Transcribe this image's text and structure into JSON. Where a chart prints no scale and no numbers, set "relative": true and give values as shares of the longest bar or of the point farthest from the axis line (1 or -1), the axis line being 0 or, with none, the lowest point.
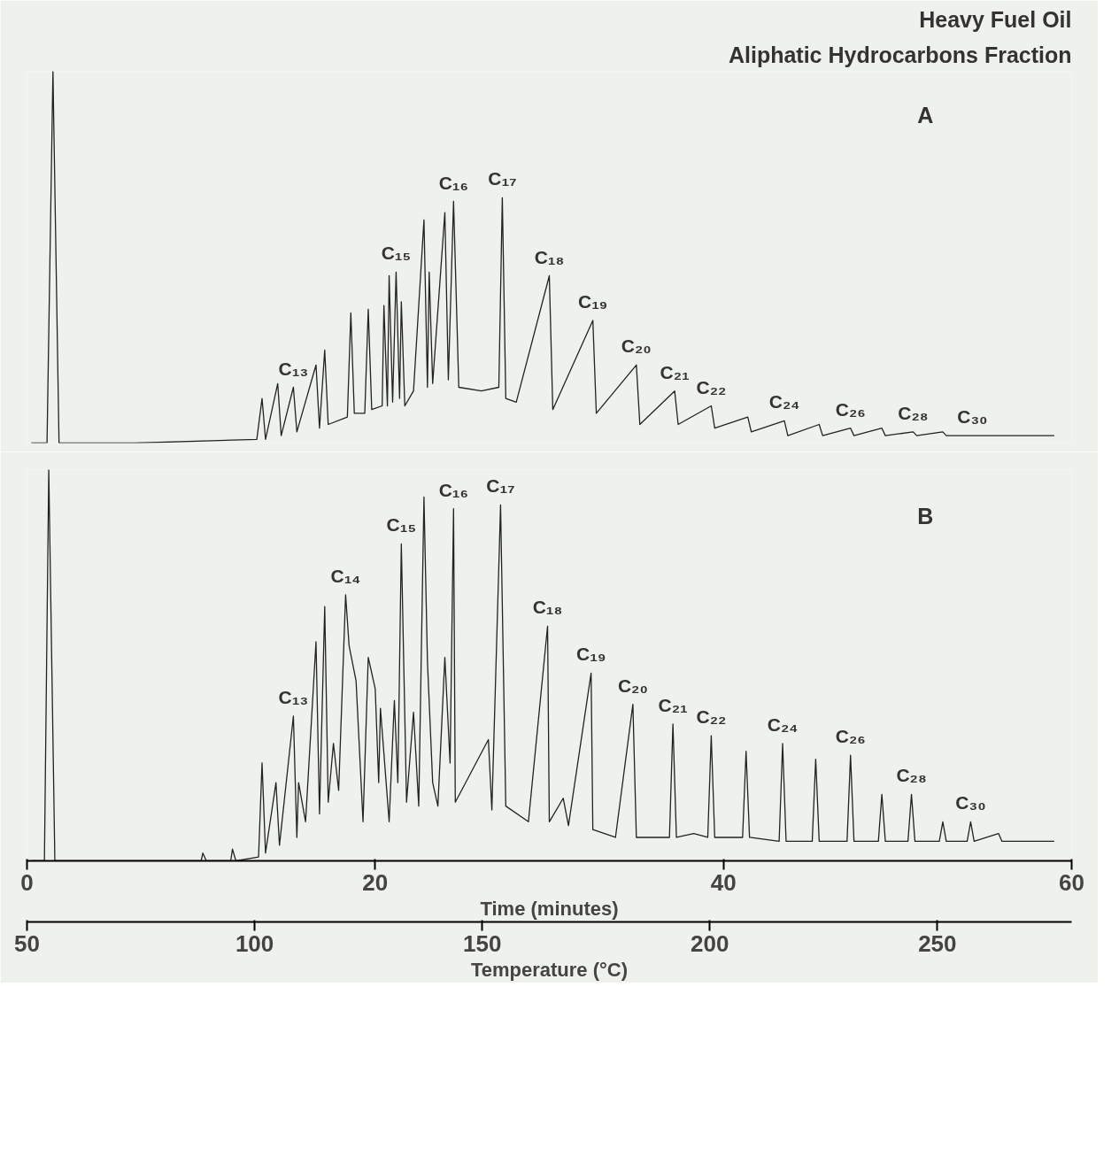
{
  "chart_data": [
    {
      "type": "line",
      "title": "Heavy Fuel Oil",
      "subtitle": "Aliphatic Hydrocarbons Fraction",
      "relative": true,
      "xlim": [
        0,
        60
      ],
      "tick_labels": false,
      "grid": false,
      "x": [
        0.25,
        1.15,
        1.49,
        1.84,
        6.2,
        13.2,
        13.5,
        13.7,
        14.4,
        14.6,
        15.3,
        15.5,
        16.6,
        16.8,
        17.1,
        17.3,
        18.4,
        18.6,
        18.8,
        19.4,
        19.6,
        19.8,
        20.4,
        20.5,
        20.7,
        20.8,
        21.0,
        21.2,
        21.4,
        21.5,
        21.7,
        22.2,
        22.8,
        23.0,
        23.1,
        23.3,
        24.0,
        24.2,
        24.5,
        24.8,
        26.1,
        27.1,
        27.3,
        27.5,
        28.1,
        30.0,
        30.2,
        32.5,
        32.7,
        35.0,
        35.2,
        37.2,
        37.4,
        39.3,
        39.5,
        41.4,
        41.6,
        43.5,
        43.7,
        45.5,
        45.7,
        47.3,
        47.5,
        49.1,
        49.3,
        50.9,
        51.1,
        52.6,
        52.8,
        54.3,
        54.5,
        59.0
      ],
      "series": [
        {
          "color": "#222222",
          "values": [
            0,
            0,
            1.0,
            0,
            0,
            0.01,
            0.12,
            0.01,
            0.16,
            0.02,
            0.15,
            0.03,
            0.21,
            0.04,
            0.25,
            0.05,
            0.07,
            0.35,
            0.08,
            0.08,
            0.36,
            0.09,
            0.1,
            0.37,
            0.1,
            0.45,
            0.11,
            0.46,
            0.12,
            0.38,
            0.1,
            0.14,
            0.6,
            0.15,
            0.46,
            0.16,
            0.62,
            0.17,
            0.65,
            0.15,
            0.14,
            0.15,
            0.66,
            0.12,
            0.11,
            0.45,
            0.09,
            0.33,
            0.08,
            0.21,
            0.05,
            0.14,
            0.05,
            0.1,
            0.04,
            0.07,
            0.03,
            0.06,
            0.02,
            0.05,
            0.02,
            0.04,
            0.02,
            0.04,
            0.02,
            0.03,
            0.02,
            0.03,
            0.02,
            0.02,
            0.02,
            0.02
          ]
        }
      ],
      "annotations": [
        "A",
        {
          "text": "C₁₃",
          "x": 15.3,
          "y": 0.15
        },
        {
          "text": "C₁₅",
          "x": 21.2,
          "y": 0.46
        },
        {
          "text": "C₁₆",
          "x": 24.5,
          "y": 0.65
        },
        {
          "text": "C₁₇",
          "x": 27.3,
          "y": 0.66
        },
        {
          "text": "C₁₈",
          "x": 30.0,
          "y": 0.45
        },
        {
          "text": "C₁₉",
          "x": 32.5,
          "y": 0.33
        },
        {
          "text": "C₂₀",
          "x": 35.0,
          "y": 0.21
        },
        {
          "text": "C₂₁",
          "x": 37.2,
          "y": 0.14
        },
        {
          "text": "C₂₂",
          "x": 39.3,
          "y": 0.1
        },
        {
          "text": "C₂₄",
          "x": 43.5,
          "y": 0.06
        },
        {
          "text": "C₂₆",
          "x": 47.3,
          "y": 0.04
        },
        {
          "text": "C₂₈",
          "x": 50.9,
          "y": 0.03
        },
        {
          "text": "C₃₀",
          "x": 54.3,
          "y": 0.02
        }
      ]
    },
    {
      "type": "line",
      "relative": true,
      "xlim": [
        0,
        60
      ],
      "xticks": [
        0,
        20,
        40,
        60
      ],
      "xlabel": "Time (minutes)",
      "x2lim": [
        50,
        279.5
      ],
      "x2ticks": [
        50,
        100,
        150,
        200,
        250
      ],
      "x2label": "Temperature (°C)",
      "tick_labels": "x",
      "grid": false,
      "x": [
        0.25,
        1.0,
        1.25,
        1.6,
        10.0,
        10.1,
        10.3,
        11.7,
        11.8,
        12.0,
        13.3,
        13.5,
        13.7,
        14.3,
        14.5,
        15.3,
        15.5,
        15.6,
        16.0,
        16.6,
        16.8,
        17.1,
        17.3,
        17.6,
        17.9,
        18.3,
        18.5,
        18.9,
        19.3,
        19.6,
        20.0,
        20.2,
        20.3,
        20.8,
        21.1,
        21.3,
        21.5,
        21.8,
        22.2,
        22.5,
        22.8,
        23.0,
        23.3,
        23.6,
        24.0,
        24.3,
        24.5,
        24.6,
        26.5,
        26.7,
        27.2,
        27.5,
        28.8,
        29.9,
        30.0,
        30.8,
        31.1,
        32.4,
        32.5,
        33.8,
        34.8,
        35.0,
        36.9,
        37.1,
        37.3,
        38.3,
        39.1,
        39.3,
        39.5,
        41.1,
        41.3,
        41.5,
        43.2,
        43.4,
        43.6,
        45.1,
        45.3,
        45.5,
        47.1,
        47.3,
        47.5,
        48.9,
        49.1,
        49.3,
        50.6,
        50.8,
        51.0,
        52.4,
        52.6,
        52.8,
        54.0,
        54.2,
        54.4,
        55.8,
        56.0,
        59.0
      ],
      "series": [
        {
          "color": "#222222",
          "values": [
            0,
            0,
            1.0,
            0,
            0,
            0.02,
            0,
            0,
            0.03,
            0,
            0.01,
            0.25,
            0.02,
            0.2,
            0.04,
            0.37,
            0.06,
            0.2,
            0.1,
            0.56,
            0.12,
            0.65,
            0.15,
            0.3,
            0.18,
            0.68,
            0.55,
            0.46,
            0.1,
            0.52,
            0.44,
            0.2,
            0.39,
            0.1,
            0.41,
            0.2,
            0.81,
            0.15,
            0.38,
            0.14,
            0.93,
            0.51,
            0.2,
            0.14,
            0.52,
            0.25,
            0.9,
            0.15,
            0.31,
            0.13,
            0.91,
            0.14,
            0.1,
            0.6,
            0.1,
            0.16,
            0.09,
            0.48,
            0.08,
            0.06,
            0.4,
            0.06,
            0.06,
            0.35,
            0.06,
            0.07,
            0.06,
            0.32,
            0.06,
            0.06,
            0.28,
            0.06,
            0.05,
            0.3,
            0.05,
            0.05,
            0.26,
            0.05,
            0.05,
            0.27,
            0.05,
            0.05,
            0.17,
            0.05,
            0.05,
            0.17,
            0.05,
            0.05,
            0.1,
            0.05,
            0.05,
            0.1,
            0.05,
            0.07,
            0.05,
            0.05
          ]
        }
      ],
      "annotations": [
        "B",
        {
          "text": "C₁₃",
          "x": 15.3,
          "y": 0.37
        },
        {
          "text": "C₁₄",
          "x": 18.3,
          "y": 0.68
        },
        {
          "text": "C₁₅",
          "x": 21.5,
          "y": 0.81
        },
        {
          "text": "C₁₆",
          "x": 24.5,
          "y": 0.9
        },
        {
          "text": "C₁₇",
          "x": 27.2,
          "y": 0.91
        },
        {
          "text": "C₁₈",
          "x": 29.9,
          "y": 0.6
        },
        {
          "text": "C₁₉",
          "x": 32.4,
          "y": 0.48
        },
        {
          "text": "C₂₀",
          "x": 34.8,
          "y": 0.4
        },
        {
          "text": "C₂₁",
          "x": 37.1,
          "y": 0.35
        },
        {
          "text": "C₂₂",
          "x": 39.3,
          "y": 0.32
        },
        {
          "text": "C₂₄",
          "x": 43.4,
          "y": 0.3
        },
        {
          "text": "C₂₆",
          "x": 47.3,
          "y": 0.27
        },
        {
          "text": "C₂₈",
          "x": 50.8,
          "y": 0.17
        },
        {
          "text": "C₃₀",
          "x": 54.2,
          "y": 0.1
        }
      ]
    }
  ]
}
